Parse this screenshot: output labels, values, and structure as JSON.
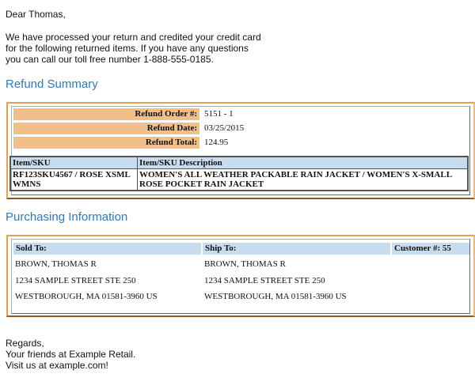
{
  "greeting": "Dear Thomas,",
  "intro": [
    "We have processed your return and credited your credit card",
    "for the following returned items. If you have any questions",
    "you can call our toll free number 1-888-555-0185."
  ],
  "refund": {
    "heading": "Refund Summary",
    "order_label": "Refund Order #:",
    "order": "5151 - 1",
    "date_label": "Refund Date:",
    "date": "03/25/2015",
    "total_label": "Refund Total:",
    "total": "124.95",
    "items": {
      "headers": [
        "Item/SKU",
        "Item/SKU Description"
      ],
      "rows": [
        [
          "RF123SKU4567 / ROSE XSML WMNS",
          "WOMEN'S ALL WEATHER PACKABLE RAIN JACKET / WOMEN'S X-SMALL ROSE POCKET RAIN JACKET"
        ]
      ]
    }
  },
  "purchasing": {
    "heading": "Purchasing Information",
    "sold_label": "Sold To:",
    "ship_label": "Ship To:",
    "customer_label": "Customer #: 55",
    "sold": [
      "BROWN, THOMAS R",
      "1234 SAMPLE STREET STE 250",
      "WESTBOROUGH, MA 01581-3960 US"
    ],
    "ship": [
      "BROWN, THOMAS R",
      "1234 SAMPLE STREET STE 250",
      "WESTBOROUGH, MA 01581-3960 US"
    ]
  },
  "closing": [
    "Regards,",
    "Your friends at Example Retail.",
    "Visit us at example.com!"
  ]
}
